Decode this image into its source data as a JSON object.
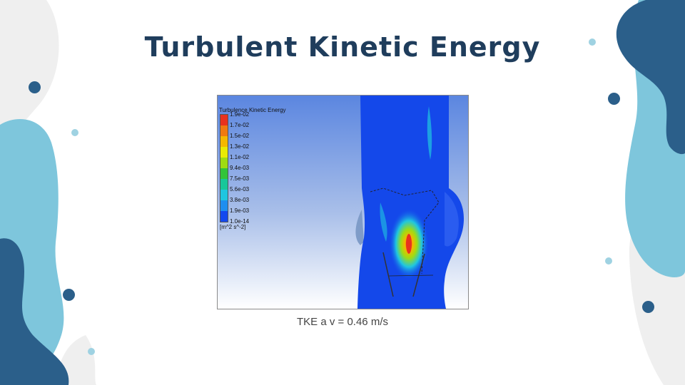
{
  "slide": {
    "title": "Turbulent Kinetic Energy",
    "caption": "TKE a v = 0.46 m/s"
  },
  "figure": {
    "legend_title": "Turbulence Kinetic Energy",
    "legend_ticks": [
      "1.9e-02",
      "1.7e-02",
      "1.5e-02",
      "1.3e-02",
      "1.1e-02",
      "9.4e-03",
      "7.5e-03",
      "5.6e-03",
      "3.8e-03",
      "1.9e-03",
      "1.0e-14"
    ],
    "legend_unit": "[m^2 s^-2]",
    "colorbar_colors": [
      "#e8321e",
      "#f07a10",
      "#f5b800",
      "#e9ea05",
      "#9fdc12",
      "#33c43a",
      "#18c79a",
      "#1fc6e0",
      "#1e8ef0",
      "#1248ee"
    ]
  },
  "theme": {
    "dark_blue": "#2b5f8a",
    "light_blue": "#7ec6dc",
    "grey": "#efefef",
    "title_color": "#1f3d5c"
  }
}
